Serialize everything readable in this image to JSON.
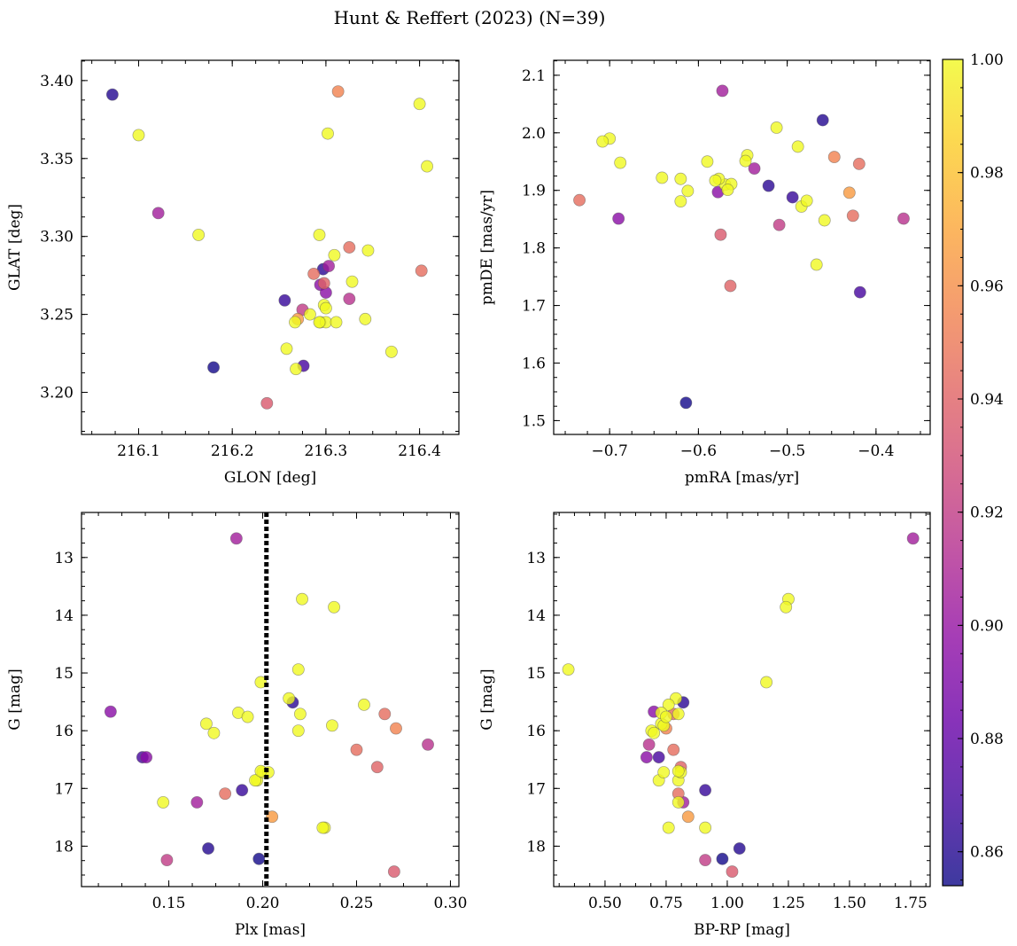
{
  "chart_data": {
    "type": "scatter",
    "title": "Hunt & Reffert (2023) (N=39)",
    "colorbar": {
      "vmin": 0.854,
      "vmax": 1.0,
      "colormap": "plasma",
      "alpha": 0.8,
      "ticks": [
        0.86,
        0.88,
        0.9,
        0.92,
        0.94,
        0.96,
        0.98,
        1.0
      ],
      "tick_labels": [
        "0.86",
        "0.88",
        "0.90",
        "0.92",
        "0.94",
        "0.96",
        "0.98",
        "1.00"
      ]
    },
    "stars": [
      {
        "glon": 216.072,
        "glat": 3.391,
        "pmra": -0.46,
        "pmde": 2.022,
        "plx": 0.171,
        "g": 18.04,
        "bprp": 1.05,
        "prob": 0.86
      },
      {
        "glon": 216.1,
        "glat": 3.365,
        "pmra": -0.7,
        "pmde": 1.99,
        "plx": 0.221,
        "g": 13.72,
        "bprp": 1.25,
        "prob": 1.0
      },
      {
        "glon": 216.313,
        "glat": 3.393,
        "pmra": -0.447,
        "pmde": 1.958,
        "plx": 0.271,
        "g": 15.96,
        "bprp": 0.75,
        "prob": 0.955
      },
      {
        "glon": 216.302,
        "glat": 3.366,
        "pmra": -0.708,
        "pmde": 1.985,
        "plx": 0.238,
        "g": 13.86,
        "bprp": 1.24,
        "prob": 1.0
      },
      {
        "glon": 216.4,
        "glat": 3.385,
        "pmra": -0.512,
        "pmde": 2.009,
        "plx": 0.199,
        "g": 15.16,
        "bprp": 1.16,
        "prob": 1.0
      },
      {
        "glon": 216.408,
        "glat": 3.345,
        "pmra": -0.488,
        "pmde": 1.976,
        "plx": 0.219,
        "g": 14.94,
        "bprp": 0.35,
        "prob": 1.0
      },
      {
        "glon": 216.121,
        "glat": 3.315,
        "pmra": -0.573,
        "pmde": 2.073,
        "plx": 0.186,
        "g": 12.67,
        "bprp": 1.76,
        "prob": 0.905
      },
      {
        "glon": 216.164,
        "glat": 3.301,
        "pmra": -0.641,
        "pmde": 1.922,
        "plx": 0.17,
        "g": 15.88,
        "bprp": 0.73,
        "prob": 1.0
      },
      {
        "glon": 216.402,
        "glat": 3.278,
        "pmra": -0.419,
        "pmde": 1.946,
        "plx": 0.265,
        "g": 15.71,
        "bprp": 0.78,
        "prob": 0.945
      },
      {
        "glon": 216.293,
        "glat": 3.301,
        "pmra": -0.688,
        "pmde": 1.948,
        "plx": 0.214,
        "g": 15.44,
        "bprp": 0.79,
        "prob": 1.0
      },
      {
        "glon": 216.325,
        "glat": 3.293,
        "pmra": -0.734,
        "pmde": 1.883,
        "plx": 0.18,
        "g": 17.09,
        "bprp": 0.8,
        "prob": 0.945
      },
      {
        "glon": 216.345,
        "glat": 3.291,
        "pmra": -0.59,
        "pmde": 1.95,
        "plx": 0.254,
        "g": 15.55,
        "bprp": 0.76,
        "prob": 1.0
      },
      {
        "glon": 216.309,
        "glat": 3.288,
        "pmra": -0.545,
        "pmde": 1.961,
        "plx": 0.187,
        "g": 15.69,
        "bprp": 0.73,
        "prob": 1.0
      },
      {
        "glon": 216.297,
        "glat": 3.279,
        "pmra": -0.521,
        "pmde": 1.908,
        "plx": 0.216,
        "g": 15.51,
        "bprp": 0.82,
        "prob": 0.862
      },
      {
        "glon": 216.303,
        "glat": 3.281,
        "pmra": -0.537,
        "pmde": 1.938,
        "plx": 0.165,
        "g": 17.24,
        "bprp": 0.82,
        "prob": 0.905
      },
      {
        "glon": 216.287,
        "glat": 3.276,
        "pmra": -0.426,
        "pmde": 1.856,
        "plx": 0.25,
        "g": 16.33,
        "bprp": 0.78,
        "prob": 0.945
      },
      {
        "glon": 216.298,
        "glat": 3.27,
        "pmra": -0.564,
        "pmde": 1.734,
        "plx": 0.261,
        "g": 16.63,
        "bprp": 0.81,
        "prob": 0.94
      },
      {
        "glon": 216.328,
        "glat": 3.271,
        "pmra": -0.547,
        "pmde": 1.951,
        "plx": 0.233,
        "g": 17.68,
        "bprp": 0.91,
        "prob": 1.0
      },
      {
        "glon": 216.294,
        "glat": 3.269,
        "pmra": -0.578,
        "pmde": 1.897,
        "plx": 0.138,
        "g": 16.46,
        "bprp": 0.67,
        "prob": 0.895
      },
      {
        "glon": 216.256,
        "glat": 3.259,
        "pmra": -0.494,
        "pmde": 1.888,
        "plx": 0.189,
        "g": 17.03,
        "bprp": 0.91,
        "prob": 0.865
      },
      {
        "glon": 216.325,
        "glat": 3.26,
        "pmra": -0.369,
        "pmde": 1.851,
        "plx": 0.288,
        "g": 16.24,
        "bprp": 0.68,
        "prob": 0.915
      },
      {
        "glon": 216.3,
        "glat": 3.264,
        "pmra": -0.69,
        "pmde": 1.851,
        "plx": 0.119,
        "g": 15.67,
        "bprp": 0.7,
        "prob": 0.895
      },
      {
        "glon": 216.275,
        "glat": 3.253,
        "pmra": -0.509,
        "pmde": 1.84,
        "plx": 0.149,
        "g": 18.24,
        "bprp": 0.91,
        "prob": 0.92
      },
      {
        "glon": 216.283,
        "glat": 3.25,
        "pmra": -0.62,
        "pmde": 1.92,
        "plx": 0.22,
        "g": 15.71,
        "bprp": 0.8,
        "prob": 1.0
      },
      {
        "glon": 216.298,
        "glat": 3.256,
        "pmra": -0.57,
        "pmde": 1.91,
        "plx": 0.219,
        "g": 16.0,
        "bprp": 0.69,
        "prob": 1.0
      },
      {
        "glon": 216.3,
        "glat": 3.254,
        "pmra": -0.563,
        "pmde": 1.911,
        "plx": 0.237,
        "g": 15.91,
        "bprp": 0.74,
        "prob": 1.0
      },
      {
        "glon": 216.267,
        "glat": 3.245,
        "pmra": -0.612,
        "pmde": 1.899,
        "plx": 0.174,
        "g": 16.04,
        "bprp": 0.7,
        "prob": 1.0
      },
      {
        "glon": 216.294,
        "glat": 3.245,
        "pmra": -0.62,
        "pmde": 1.881,
        "plx": 0.192,
        "g": 15.76,
        "bprp": 0.75,
        "prob": 1.0
      },
      {
        "glon": 216.3,
        "glat": 3.245,
        "pmra": -0.567,
        "pmde": 1.901,
        "plx": 0.197,
        "g": 16.86,
        "bprp": 0.8,
        "prob": 1.0
      },
      {
        "glon": 216.311,
        "glat": 3.245,
        "pmra": -0.484,
        "pmde": 1.872,
        "plx": 0.2,
        "g": 16.72,
        "bprp": 0.81,
        "prob": 1.0
      },
      {
        "glon": 216.342,
        "glat": 3.247,
        "pmra": -0.478,
        "pmde": 1.882,
        "plx": 0.196,
        "g": 16.86,
        "bprp": 0.72,
        "prob": 1.0
      },
      {
        "glon": 216.293,
        "glat": 3.245,
        "pmra": -0.577,
        "pmde": 1.92,
        "plx": 0.203,
        "g": 16.72,
        "bprp": 0.74,
        "prob": 1.0
      },
      {
        "glon": 216.258,
        "glat": 3.228,
        "pmra": -0.467,
        "pmde": 1.771,
        "plx": 0.147,
        "g": 17.24,
        "bprp": 0.8,
        "prob": 1.0
      },
      {
        "glon": 216.37,
        "glat": 3.226,
        "pmra": -0.458,
        "pmde": 1.848,
        "plx": 0.199,
        "g": 16.7,
        "bprp": 0.8,
        "prob": 1.0
      },
      {
        "glon": 216.268,
        "glat": 3.215,
        "pmra": -0.581,
        "pmde": 1.917,
        "plx": 0.232,
        "g": 17.68,
        "bprp": 0.76,
        "prob": 1.0
      },
      {
        "glon": 216.18,
        "glat": 3.216,
        "pmra": -0.614,
        "pmde": 1.531,
        "plx": 0.198,
        "g": 18.22,
        "bprp": 0.98,
        "prob": 0.855
      },
      {
        "glon": 216.276,
        "glat": 3.217,
        "pmra": -0.418,
        "pmde": 1.723,
        "plx": 0.136,
        "g": 16.46,
        "bprp": 0.72,
        "prob": 0.87
      },
      {
        "glon": 216.237,
        "glat": 3.193,
        "pmra": -0.575,
        "pmde": 1.823,
        "plx": 0.27,
        "g": 18.44,
        "bprp": 1.02,
        "prob": 0.935
      },
      {
        "glon": 216.27,
        "glat": 3.247,
        "pmra": -0.43,
        "pmde": 1.896,
        "plx": 0.205,
        "g": 17.49,
        "bprp": 0.84,
        "prob": 0.965
      }
    ],
    "panels": [
      {
        "id": "glon-glat",
        "x": "glon",
        "y": "glat",
        "xlabel": "GLON [deg]",
        "ylabel": "GLAT [deg]",
        "xlim": [
          216.039,
          216.442
        ],
        "ylim": [
          3.173,
          3.413
        ],
        "xticks": [
          216.1,
          216.2,
          216.3,
          216.4
        ],
        "xtick_labels": [
          "216.1",
          "216.2",
          "216.3",
          "216.4"
        ],
        "xminor": 0.025,
        "yticks": [
          3.2,
          3.25,
          3.3,
          3.35,
          3.4
        ],
        "ytick_labels": [
          "3.20",
          "3.25",
          "3.30",
          "3.35",
          "3.40"
        ],
        "yminor": 0.0125,
        "invert_y": false,
        "vline": null
      },
      {
        "id": "pmra-pmde",
        "x": "pmra",
        "y": "pmde",
        "xlabel": "pmRA [mas/yr]",
        "ylabel": "pmDE [mas/yr]",
        "xlim": [
          -0.763,
          -0.339
        ],
        "ylim": [
          1.476,
          2.126
        ],
        "xticks": [
          -0.7,
          -0.6,
          -0.5,
          -0.4
        ],
        "xtick_labels": [
          "−0.7",
          "−0.6",
          "−0.5",
          "−0.4"
        ],
        "xminor": 0.025,
        "yticks": [
          1.5,
          1.6,
          1.7,
          1.8,
          1.9,
          2.0,
          2.1
        ],
        "ytick_labels": [
          "1.5",
          "1.6",
          "1.7",
          "1.8",
          "1.9",
          "2.0",
          "2.1"
        ],
        "yminor": 0.025,
        "invert_y": false,
        "vline": null
      },
      {
        "id": "plx-g",
        "x": "plx",
        "y": "g",
        "xlabel": "Plx [mas]",
        "ylabel": "G [mag]",
        "xlim": [
          0.1035,
          0.3045
        ],
        "ylim": [
          12.22,
          18.7
        ],
        "xticks": [
          0.15,
          0.2,
          0.25,
          0.3
        ],
        "xtick_labels": [
          "0.15",
          "0.20",
          "0.25",
          "0.30"
        ],
        "xminor": 0.0125,
        "yticks": [
          13,
          14,
          15,
          16,
          17,
          18
        ],
        "ytick_labels": [
          "13",
          "14",
          "15",
          "16",
          "17",
          "18"
        ],
        "yminor": 0.25,
        "invert_y": true,
        "vline": 0.202
      },
      {
        "id": "bprp-g",
        "x": "bprp",
        "y": "g",
        "xlabel": "BP-RP [mag]",
        "ylabel": "G [mag]",
        "xlim": [
          0.29,
          1.83
        ],
        "ylim": [
          12.22,
          18.7
        ],
        "xticks": [
          0.5,
          0.75,
          1.0,
          1.25,
          1.5,
          1.75
        ],
        "xtick_labels": [
          "0.50",
          "0.75",
          "1.00",
          "1.25",
          "1.50",
          "1.75"
        ],
        "xminor": 0.0625,
        "yticks": [
          13,
          14,
          15,
          16,
          17,
          18
        ],
        "ytick_labels": [
          "13",
          "14",
          "15",
          "16",
          "17",
          "18"
        ],
        "yminor": 0.25,
        "invert_y": true,
        "vline": null
      }
    ]
  }
}
